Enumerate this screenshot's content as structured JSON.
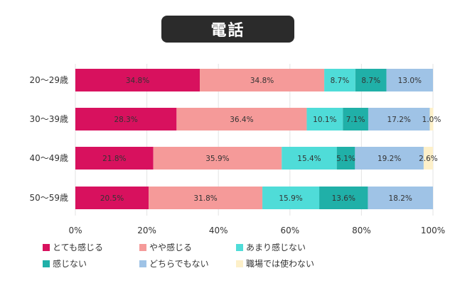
{
  "title": "電話",
  "chart_data": {
    "type": "bar",
    "orientation": "horizontal",
    "stacked": true,
    "percent": true,
    "categories": [
      "20〜29歳",
      "30〜39歳",
      "40〜49歳",
      "50〜59歳"
    ],
    "series": [
      {
        "name": "とても感じる",
        "color": "#d8115e",
        "values": [
          34.8,
          28.3,
          21.8,
          20.5
        ],
        "labels": [
          "34.8%",
          "28.3%",
          "21.8%",
          "20.5%"
        ]
      },
      {
        "name": "やや感じる",
        "color": "#f59a99",
        "values": [
          34.8,
          36.4,
          35.9,
          31.8
        ],
        "labels": [
          "34.8%",
          "36.4%",
          "35.9%",
          "31.8%"
        ]
      },
      {
        "name": "あまり感じない",
        "color": "#4fdcd8",
        "values": [
          8.7,
          10.1,
          15.4,
          15.9
        ],
        "labels": [
          "8.7%",
          "10.1%",
          "15.4%",
          "15.9%"
        ]
      },
      {
        "name": "感じない",
        "color": "#20b0a8",
        "values": [
          8.7,
          7.1,
          5.1,
          13.6
        ],
        "labels": [
          "8.7%",
          "7.1%",
          "5.1%",
          "13.6%"
        ]
      },
      {
        "name": "どちらでもない",
        "color": "#9fc3e6",
        "values": [
          13.0,
          17.2,
          19.2,
          18.2
        ],
        "labels": [
          "13.0%",
          "17.2%",
          "19.2%",
          "18.2%"
        ]
      },
      {
        "name": "職場では使わない",
        "color": "#fdf0c9",
        "values": [
          0,
          1.0,
          2.6,
          0
        ],
        "labels": [
          "",
          "1.0%",
          "2.6%",
          ""
        ]
      }
    ],
    "xlim": [
      0,
      100
    ],
    "xticks": [
      "0%",
      "20%",
      "40%",
      "60%",
      "80%",
      "100%"
    ],
    "grid": true,
    "legend_position": "bottom"
  }
}
